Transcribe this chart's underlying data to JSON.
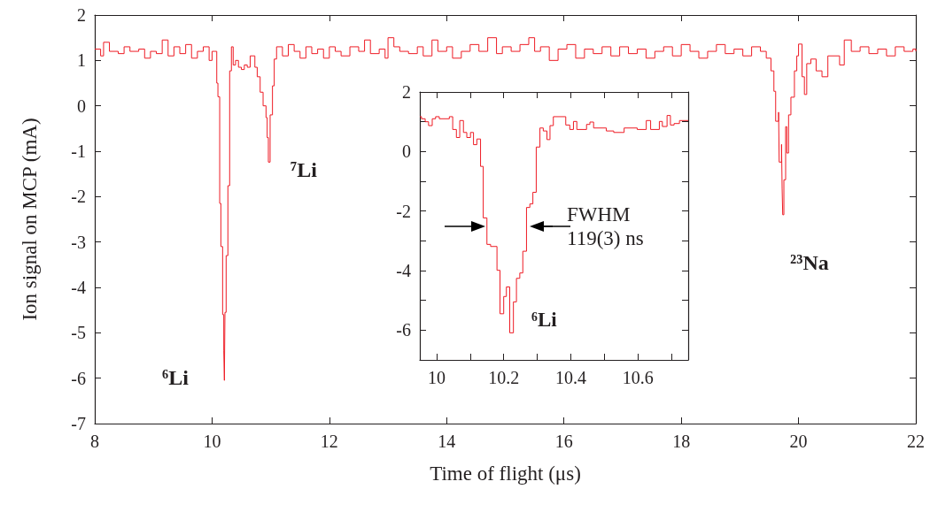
{
  "chart_data": [
    {
      "type": "step",
      "xlabel": "Time of flight (μs)",
      "ylabel": "Ion signal on MCP (mA)",
      "xlim": [
        8,
        22
      ],
      "ylim": [
        -7,
        2
      ],
      "xticks": [
        8,
        10,
        12,
        14,
        16,
        18,
        20,
        22
      ],
      "yticks": [
        -7,
        -6,
        -5,
        -4,
        -3,
        -2,
        -1,
        0,
        1,
        2
      ],
      "grid": false,
      "marker": "none",
      "line_style": "solid",
      "annotations": [
        "⁶Li",
        "⁷Li",
        "²³Na"
      ],
      "series": [
        {
          "color": "#ee1c25",
          "x": [
            8.0,
            8.1,
            8.15,
            8.25,
            8.4,
            8.5,
            8.6,
            8.75,
            8.85,
            8.95,
            9.05,
            9.15,
            9.25,
            9.35,
            9.45,
            9.55,
            9.65,
            9.75,
            9.85,
            9.95,
            10.0,
            10.05,
            10.08,
            10.1,
            10.13,
            10.15,
            10.18,
            10.2,
            10.21,
            10.22,
            10.24,
            10.27,
            10.3,
            10.33,
            10.36,
            10.4,
            10.45,
            10.5,
            10.55,
            10.6,
            10.65,
            10.69,
            10.73,
            10.77,
            10.82,
            10.87,
            10.92,
            10.94,
            10.96,
            10.99,
            11.03,
            11.06,
            11.1,
            11.2,
            11.3,
            11.4,
            11.5,
            11.6,
            11.7,
            11.8,
            11.9,
            12.0,
            12.1,
            12.2,
            12.35,
            12.5,
            12.6,
            12.7,
            12.85,
            12.95,
            13.0,
            13.1,
            13.2,
            13.35,
            13.5,
            13.6,
            13.75,
            13.85,
            14.0,
            14.1,
            14.25,
            14.4,
            14.55,
            14.7,
            14.85,
            14.95,
            15.1,
            15.25,
            15.4,
            15.5,
            15.6,
            15.75,
            15.9,
            16.05,
            16.2,
            16.35,
            16.5,
            16.65,
            16.8,
            16.95,
            17.1,
            17.25,
            17.4,
            17.55,
            17.7,
            17.85,
            18.0,
            18.15,
            18.3,
            18.45,
            18.6,
            18.75,
            18.9,
            19.05,
            19.2,
            19.35,
            19.45,
            19.53,
            19.58,
            19.61,
            19.66,
            19.67,
            19.71,
            19.72,
            19.73,
            19.75,
            19.78,
            19.8,
            19.83,
            19.87,
            19.93,
            19.97,
            20.0,
            20.06,
            20.1,
            20.14,
            20.21,
            20.3,
            20.4,
            20.5,
            20.7,
            20.78,
            20.9,
            21.05,
            21.2,
            21.35,
            21.5,
            21.65,
            21.8,
            21.95,
            22.0
          ],
          "values": [
            1.25,
            1.1,
            1.4,
            1.2,
            1.15,
            1.3,
            1.2,
            1.25,
            1.05,
            1.2,
            1.15,
            1.45,
            1.1,
            1.3,
            1.15,
            1.35,
            1.05,
            1.2,
            1.3,
            1.0,
            1.2,
            1.2,
            0.5,
            0.2,
            -2.15,
            -3.1,
            -4.6,
            -5.4,
            -6.05,
            -4.55,
            -3.3,
            -1.76,
            0.77,
            1.3,
            0.9,
            1.0,
            0.85,
            0.8,
            0.9,
            0.85,
            1.1,
            1.1,
            0.85,
            0.64,
            0.3,
            0.0,
            -0.26,
            -0.7,
            -1.24,
            -0.2,
            0.44,
            1.03,
            1.3,
            1.1,
            1.35,
            1.2,
            1.05,
            1.3,
            1.15,
            1.25,
            1.05,
            1.3,
            1.2,
            1.1,
            1.3,
            1.2,
            1.45,
            1.15,
            1.25,
            1.05,
            1.5,
            1.3,
            1.2,
            1.15,
            1.3,
            1.1,
            1.45,
            1.2,
            1.3,
            1.05,
            1.2,
            1.35,
            1.2,
            1.5,
            1.15,
            1.3,
            1.2,
            1.35,
            1.5,
            1.2,
            1.3,
            1.0,
            1.25,
            1.35,
            1.05,
            1.25,
            1.15,
            1.3,
            1.1,
            1.3,
            1.15,
            1.25,
            1.05,
            1.2,
            1.3,
            1.1,
            1.35,
            1.2,
            1.05,
            1.2,
            1.35,
            1.15,
            1.25,
            1.1,
            1.3,
            1.2,
            1.05,
            0.77,
            0.32,
            -0.34,
            -0.14,
            -1.24,
            -0.85,
            -1.82,
            -2.4,
            -1.63,
            -0.46,
            -1.04,
            -0.2,
            0.19,
            0.77,
            1.1,
            1.36,
            0.64,
            0.25,
            0.93,
            1.03,
            0.77,
            0.64,
            1.1,
            0.9,
            1.45,
            1.2,
            1.3,
            1.15,
            1.25,
            1.1,
            1.3,
            1.2,
            1.25,
            1.2
          ]
        }
      ]
    },
    {
      "type": "step",
      "xlim": [
        9.95,
        10.75
      ],
      "ylim": [
        -7,
        2
      ],
      "xticks": [
        10,
        {
          "value": 10.1,
          "label": null
        },
        10.2,
        {
          "value": 10.3,
          "label": null
        },
        10.4,
        {
          "value": 10.5,
          "label": null
        },
        10.6,
        {
          "value": 10.7,
          "label": null
        }
      ],
      "yticks": [
        {
          "value": -7,
          "label": null
        },
        -6,
        {
          "value": -5,
          "label": null
        },
        -4,
        {
          "value": -3,
          "label": null
        },
        -2,
        {
          "value": -1,
          "label": null
        },
        0,
        {
          "value": 1,
          "label": null
        },
        2
      ],
      "grid": false,
      "marker": "none",
      "line_style": "solid",
      "annotations": [
        "⁶Li",
        "FWHM\n119(3) ns"
      ],
      "series": [
        {
          "color": "#ee1c25",
          "x": [
            9.95,
            9.955,
            9.966,
            9.976,
            9.987,
            9.997,
            10.008,
            10.038,
            10.048,
            10.059,
            10.069,
            10.08,
            10.09,
            10.101,
            10.11,
            10.12,
            10.131,
            10.139,
            10.15,
            10.161,
            10.18,
            10.189,
            10.2,
            10.208,
            10.218,
            10.229,
            10.238,
            10.248,
            10.257,
            10.268,
            10.278,
            10.287,
            10.297,
            10.308,
            10.318,
            10.329,
            10.338,
            10.348,
            10.385,
            10.397,
            10.408,
            10.418,
            10.447,
            10.457,
            10.468,
            10.506,
            10.528,
            10.559,
            10.598,
            10.625,
            10.638,
            10.664,
            10.673,
            10.687,
            10.697,
            10.708,
            10.724,
            10.75
          ],
          "values": [
            1.17,
            1.1,
            1.0,
            0.87,
            1.1,
            1.17,
            1.1,
            1.17,
            0.74,
            0.47,
            1.04,
            0.64,
            0.47,
            0.64,
            0.23,
            0.42,
            -0.5,
            -2.23,
            -3.12,
            -3.19,
            -3.99,
            -5.45,
            -4.87,
            -4.55,
            -6.09,
            -5.05,
            -4.26,
            -4.08,
            -3.35,
            -1.88,
            -1.76,
            -1.37,
            0.15,
            0.79,
            0.69,
            0.4,
            0.87,
            1.17,
            0.89,
            0.74,
            1.01,
            0.74,
            0.91,
            0.99,
            0.79,
            0.69,
            0.64,
            0.79,
            0.74,
            1.04,
            0.74,
            1.01,
            0.84,
            1.21,
            0.89,
            0.94,
            1.04,
            1.04
          ]
        }
      ]
    }
  ]
}
